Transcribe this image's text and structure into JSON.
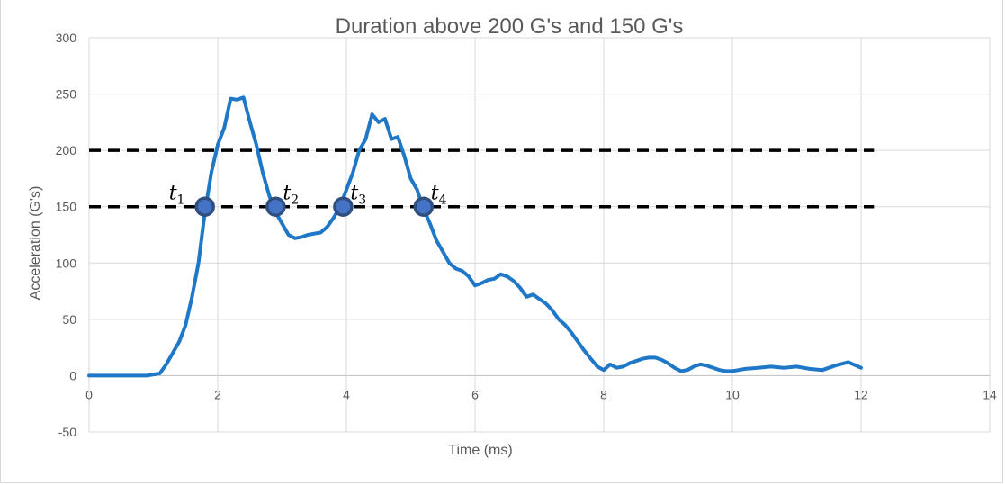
{
  "chart_data": {
    "type": "line",
    "title": "Duration above 200 G's and 150 G's",
    "xlabel": "Time (ms)",
    "ylabel": "Acceleration (G's)",
    "xlim": [
      0,
      14
    ],
    "ylim": [
      -50,
      300
    ],
    "x_ticks": [
      "0",
      "2",
      "4",
      "6",
      "8",
      "10",
      "12",
      "14"
    ],
    "y_ticks": [
      "300",
      "250",
      "200",
      "150",
      "100",
      "50",
      "0",
      "-50"
    ],
    "grid": true,
    "legend": "none",
    "colors": {
      "series": "#1f77c8",
      "threshold": "#000000",
      "marker_fill": "#4472c4",
      "marker_edge": "#2f4f7f"
    },
    "series": [
      {
        "x": [
          0,
          0.5,
          0.9,
          1.1,
          1.2,
          1.3,
          1.4,
          1.5,
          1.6,
          1.7,
          1.8,
          1.9,
          2.0,
          2.1,
          2.2,
          2.3,
          2.4,
          2.5,
          2.6,
          2.7,
          2.8,
          2.9,
          3.0,
          3.1,
          3.2,
          3.3,
          3.4,
          3.5,
          3.6,
          3.7,
          3.8,
          3.9,
          4.0,
          4.1,
          4.2,
          4.3,
          4.4,
          4.5,
          4.6,
          4.7,
          4.8,
          4.9,
          5.0,
          5.1,
          5.2,
          5.3,
          5.4,
          5.5,
          5.6,
          5.7,
          5.8,
          5.9,
          6.0,
          6.1,
          6.2,
          6.3,
          6.4,
          6.5,
          6.6,
          6.7,
          6.8,
          6.9,
          7.0,
          7.1,
          7.2,
          7.3,
          7.4,
          7.5,
          7.6,
          7.7,
          7.8,
          7.9,
          8.0,
          8.1,
          8.2,
          8.3,
          8.4,
          8.5,
          8.6,
          8.7,
          8.8,
          8.9,
          9.0,
          9.1,
          9.2,
          9.3,
          9.4,
          9.5,
          9.6,
          9.7,
          9.8,
          9.9,
          10.0,
          10.1,
          10.2,
          10.4,
          10.6,
          10.8,
          11.0,
          11.2,
          11.4,
          11.6,
          11.8,
          12.0
        ],
        "y": [
          0,
          0,
          0,
          2,
          10,
          20,
          30,
          45,
          70,
          100,
          145,
          180,
          205,
          220,
          246,
          245,
          247,
          225,
          205,
          180,
          160,
          145,
          135,
          125,
          122,
          123,
          125,
          126,
          127,
          132,
          140,
          150,
          165,
          180,
          200,
          210,
          232,
          225,
          228,
          210,
          212,
          195,
          175,
          165,
          148,
          135,
          120,
          110,
          100,
          95,
          93,
          88,
          80,
          82,
          85,
          86,
          90,
          88,
          84,
          78,
          70,
          72,
          68,
          64,
          58,
          50,
          45,
          38,
          30,
          22,
          15,
          8,
          5,
          10,
          7,
          8,
          11,
          13,
          15,
          16,
          16,
          14,
          11,
          7,
          4,
          5,
          8,
          10,
          9,
          7,
          5,
          4,
          4,
          5,
          6,
          7,
          8,
          7,
          8,
          6,
          5,
          9,
          12,
          7
        ]
      }
    ],
    "thresholds": [
      200,
      150
    ],
    "markers": [
      {
        "label": "t",
        "sub": "1",
        "x": 1.8,
        "y": 150
      },
      {
        "label": "t",
        "sub": "2",
        "x": 2.9,
        "y": 150
      },
      {
        "label": "t",
        "sub": "3",
        "x": 3.95,
        "y": 150
      },
      {
        "label": "t",
        "sub": "4",
        "x": 5.2,
        "y": 150
      }
    ]
  }
}
